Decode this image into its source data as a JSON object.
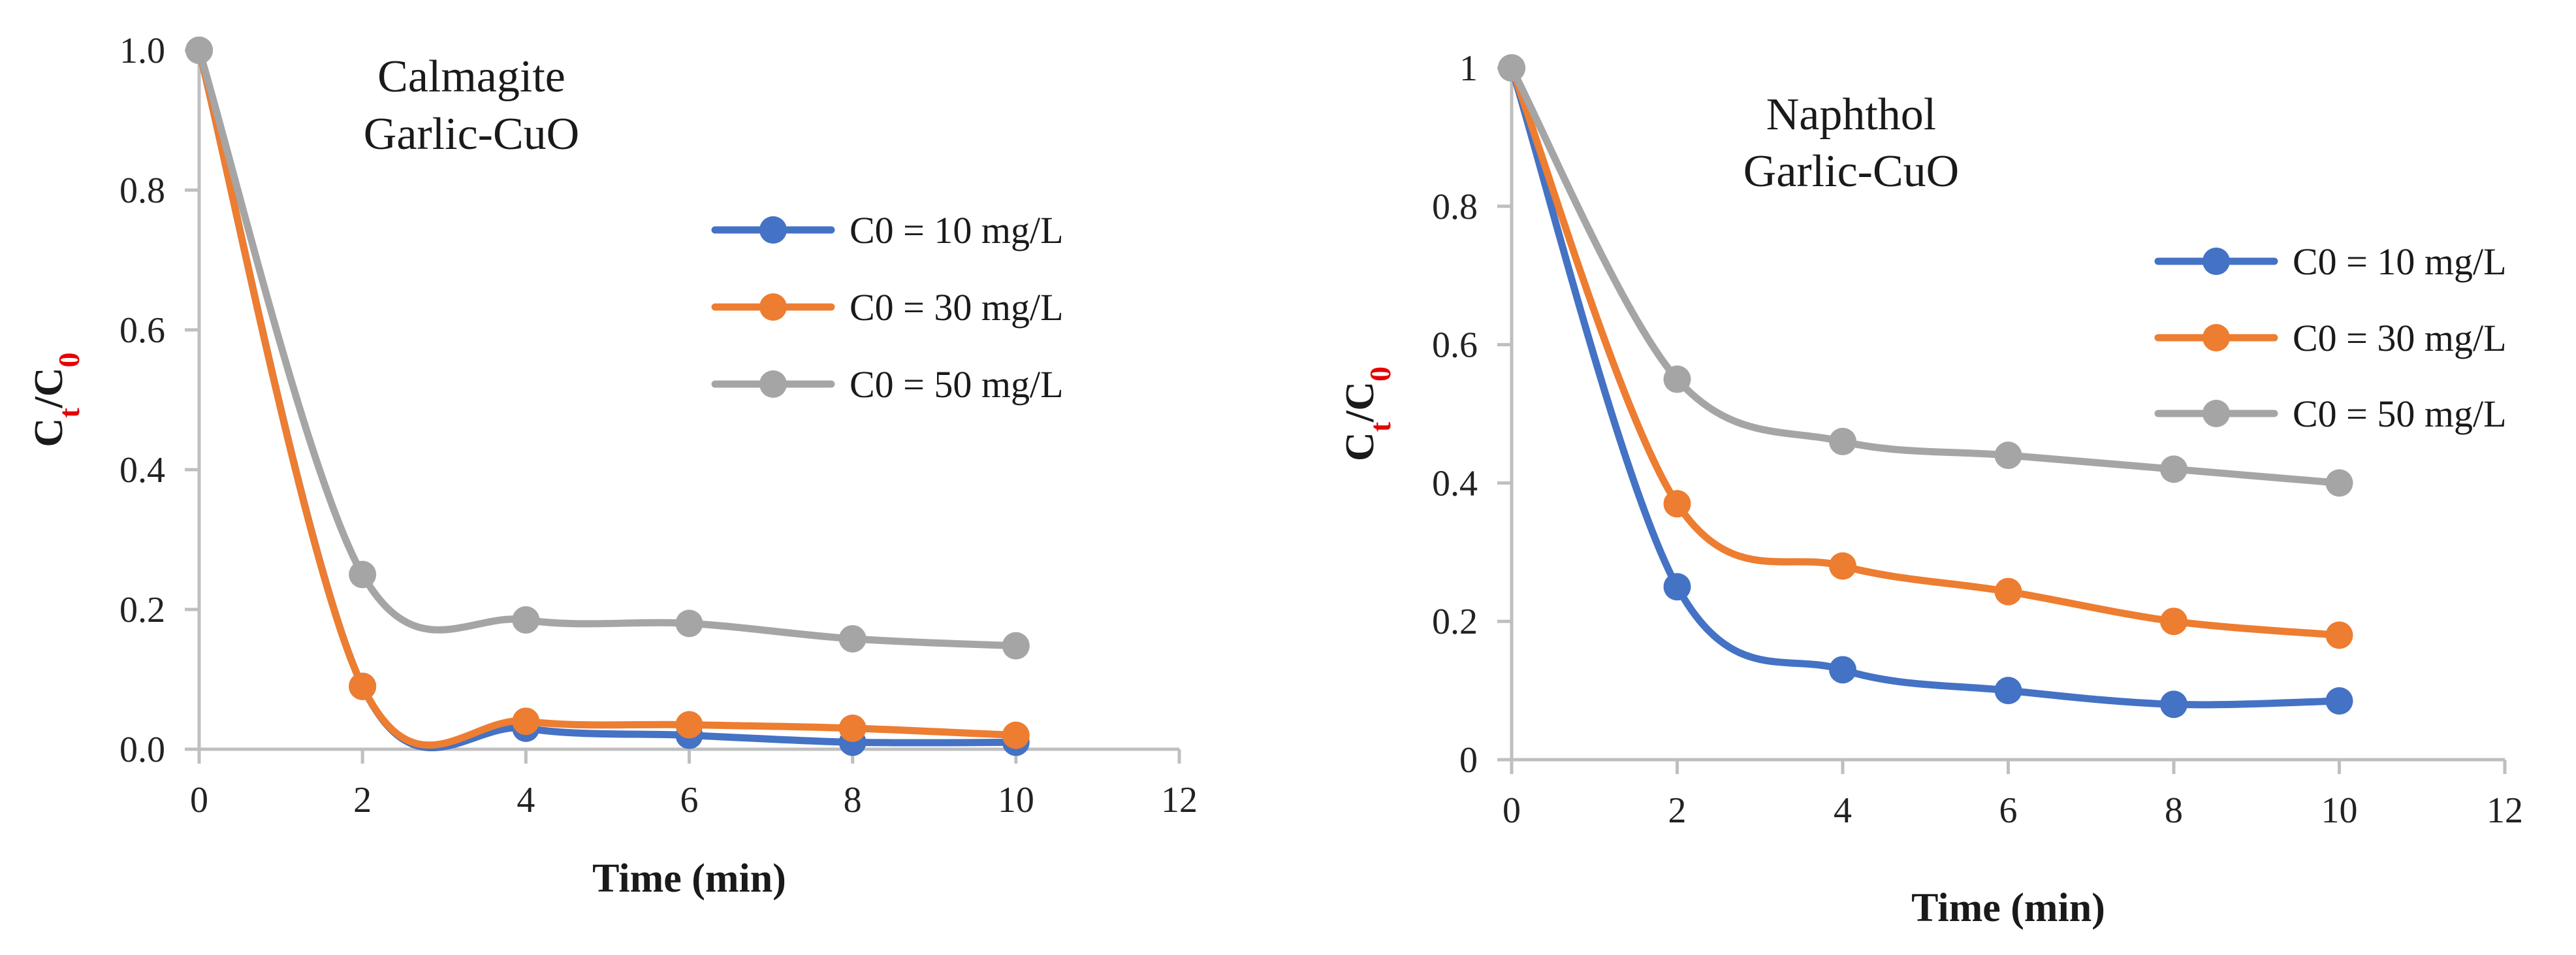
{
  "chart_data": [
    {
      "type": "line",
      "title_lines": [
        "Calmagite",
        "Garlic-CuO"
      ],
      "xlabel": "Time (min)",
      "ylabel": {
        "c": "C",
        "t": "t",
        "slash": "/",
        "c0": "C",
        "zero": "0"
      },
      "xlim": [
        0,
        12
      ],
      "ylim": [
        0,
        1
      ],
      "xticks": [
        0,
        2,
        4,
        6,
        8,
        10,
        12
      ],
      "xtick_labels": [
        "0",
        "2",
        "4",
        "6",
        "8",
        "10",
        "12"
      ],
      "yticks": [
        0,
        0.2,
        0.4,
        0.6,
        0.8,
        1.0
      ],
      "ytick_labels": [
        "0.0",
        "0.2",
        "0.4",
        "0.6",
        "0.8",
        "1.0"
      ],
      "x": [
        0,
        2,
        4,
        6,
        8,
        10
      ],
      "series": [
        {
          "name": "C0 = 10 mg/L",
          "color": "#4472c4",
          "values": [
            1.0,
            0.09,
            0.03,
            0.02,
            0.01,
            0.01
          ]
        },
        {
          "name": "C0 = 30 mg/L",
          "color": "#ed7d31",
          "values": [
            1.0,
            0.09,
            0.04,
            0.035,
            0.03,
            0.02
          ]
        },
        {
          "name": "C0 = 50 mg/L",
          "color": "#a5a5a5",
          "values": [
            1.0,
            0.25,
            0.185,
            0.18,
            0.158,
            0.148
          ]
        }
      ]
    },
    {
      "type": "line",
      "title_lines": [
        "Naphthol",
        "Garlic-CuO"
      ],
      "xlabel": "Time (min)",
      "ylabel": {
        "c": "C",
        "t": "t",
        "slash": "/",
        "c0": "C",
        "zero": "0"
      },
      "xlim": [
        0,
        12
      ],
      "ylim": [
        0,
        1
      ],
      "xticks": [
        0,
        2,
        4,
        6,
        8,
        10,
        12
      ],
      "xtick_labels": [
        "0",
        "2",
        "4",
        "6",
        "8",
        "10",
        "12"
      ],
      "yticks": [
        0,
        0.2,
        0.4,
        0.6,
        0.8,
        1.0
      ],
      "ytick_labels": [
        "0",
        "0.2",
        "0.4",
        "0.6",
        "0.8",
        "1"
      ],
      "x": [
        0,
        2,
        4,
        6,
        8,
        10
      ],
      "series": [
        {
          "name": "C0 = 10 mg/L",
          "color": "#4472c4",
          "values": [
            1.0,
            0.25,
            0.13,
            0.1,
            0.08,
            0.085
          ]
        },
        {
          "name": "C0 = 30 mg/L",
          "color": "#ed7d31",
          "values": [
            1.0,
            0.37,
            0.28,
            0.243,
            0.2,
            0.18
          ]
        },
        {
          "name": "C0 = 50 mg/L",
          "color": "#a5a5a5",
          "values": [
            1.0,
            0.55,
            0.46,
            0.44,
            0.42,
            0.4
          ]
        }
      ]
    }
  ],
  "colors": {
    "ylabel_subscript": "#e60000"
  }
}
